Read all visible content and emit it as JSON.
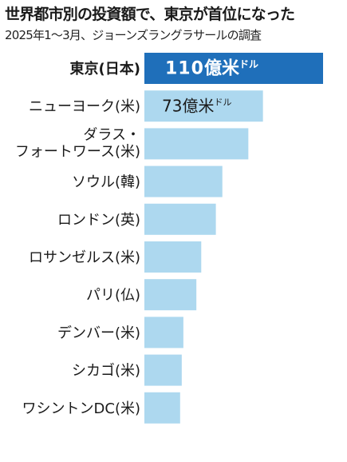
{
  "title": "世界都市別の投資額で、東京が首位になった",
  "subtitle": "2025年1～3月、ジョーンズラングラサールの調査",
  "colors": {
    "highlight": "#1f6fba",
    "bar": "#add8ef",
    "text": "#1a1a1a"
  },
  "chart_data": {
    "type": "bar",
    "orientation": "horizontal",
    "title": "世界都市別の投資額で、東京が首位になった",
    "subtitle": "2025年1～3月、ジョーンズラングラサールの調査",
    "unit": "億米ドル",
    "categories": [
      [
        "東京(日本)"
      ],
      [
        "ニューヨーク(米)"
      ],
      [
        "ダラス・",
        "フォートワース(米)"
      ],
      [
        "ソウル(韓)"
      ],
      [
        "ロンドン(英)"
      ],
      [
        "ロサンゼルス(米)"
      ],
      [
        "パリ(仏)"
      ],
      [
        "デンバー(米)"
      ],
      [
        "シカゴ(米)"
      ],
      [
        "ワシントンDC(米)"
      ]
    ],
    "values": [
      110,
      73,
      64,
      48,
      44,
      35,
      32,
      24,
      23,
      22
    ],
    "data_labels": [
      {
        "index": 0,
        "value": "110",
        "unit_main": "億米",
        "unit_small": "ドル"
      },
      {
        "index": 1,
        "value": "73",
        "unit_main": "億米",
        "unit_small": "ドル"
      }
    ],
    "highlight_index": 0,
    "xlim": [
      0,
      110
    ],
    "grid": false,
    "legend": "none"
  }
}
